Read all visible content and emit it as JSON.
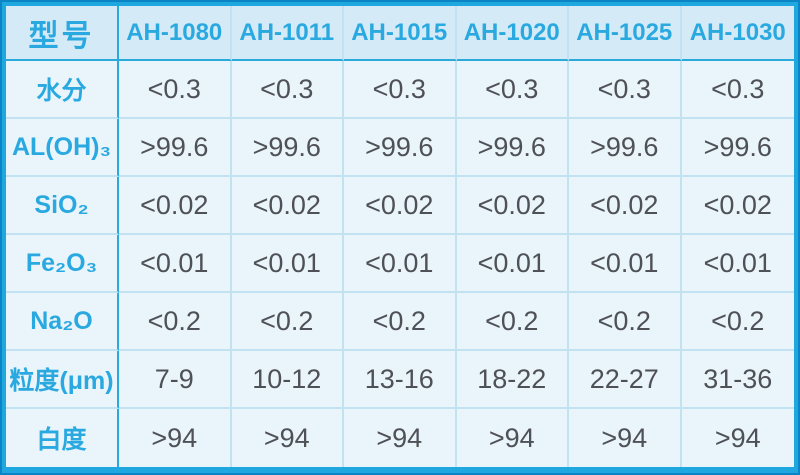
{
  "chart_data": {
    "type": "table",
    "title": "",
    "header": {
      "corner_label": "型号",
      "model_columns": [
        "AH-1080",
        "AH-1011",
        "AH-1015",
        "AH-1020",
        "AH-1025",
        "AH-1030"
      ]
    },
    "rows": [
      {
        "label": "水分",
        "values": [
          "<0.3",
          "<0.3",
          "<0.3",
          "<0.3",
          "<0.3",
          "<0.3"
        ]
      },
      {
        "label": "AL(OH)₃",
        "values": [
          ">99.6",
          ">99.6",
          ">99.6",
          ">99.6",
          ">99.6",
          ">99.6"
        ]
      },
      {
        "label": "SiO₂",
        "values": [
          "<0.02",
          "<0.02",
          "<0.02",
          "<0.02",
          "<0.02",
          "<0.02"
        ]
      },
      {
        "label": "Fe₂O₃",
        "values": [
          "<0.01",
          "<0.01",
          "<0.01",
          "<0.01",
          "<0.01",
          "<0.01"
        ]
      },
      {
        "label": "Na₂O",
        "values": [
          "<0.2",
          "<0.2",
          "<0.2",
          "<0.2",
          "<0.2",
          "<0.2"
        ]
      },
      {
        "label": "粒度(μm)",
        "values": [
          "7-9",
          "10-12",
          "13-16",
          "18-22",
          "22-27",
          "31-36"
        ]
      },
      {
        "label": "白度",
        "values": [
          ">94",
          ">94",
          ">94",
          ">94",
          ">94",
          ">94"
        ]
      }
    ]
  },
  "colors": {
    "frame": "#1fa8e0",
    "frame_edge": "#0b84c5",
    "strong_divider": "#2aa9db",
    "light_divider": "#c2e2f2",
    "header_bg": "#d4eaf7",
    "cell_bg": "#e9f4fb",
    "accent_text": "#29a9e0",
    "value_text": "#4e5156"
  }
}
